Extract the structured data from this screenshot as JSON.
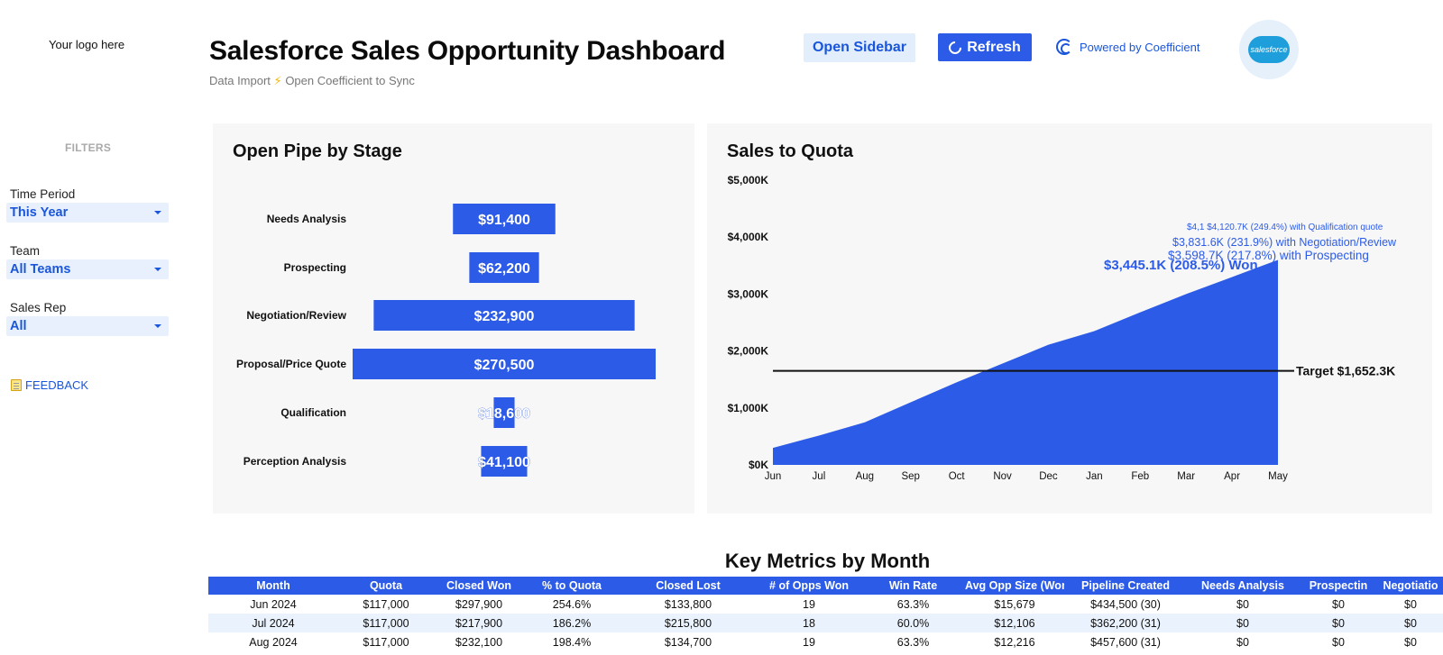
{
  "sidebar": {
    "logo_text": "Your logo here",
    "filters_title": "FILTERS",
    "filters": [
      {
        "label": "Time Period",
        "value": "This Year"
      },
      {
        "label": "Team",
        "value": "All Teams"
      },
      {
        "label": "Sales Rep",
        "value": "All"
      }
    ],
    "feedback_label": "FEEDBACK"
  },
  "header": {
    "title": "Salesforce Sales Opportunity Dashboard",
    "subtitle_pre": "Data Import",
    "subtitle_post": "Open Coefficient to Sync",
    "open_sidebar_label": "Open Sidebar",
    "refresh_label": "Refresh",
    "powered_label": "Powered by Coefficient",
    "salesforce_logo_text": "salesforce"
  },
  "colors": {
    "accent": "#2c5be8",
    "accent_light": "#e3eefc",
    "panel_bg": "#f7f7f7"
  },
  "chart_data": [
    {
      "type": "bar",
      "title": "Open Pipe by Stage",
      "categories": [
        "Needs Analysis",
        "Prospecting",
        "Negotiation/Review",
        "Proposal/Price Quote",
        "Qualification",
        "Perception Analysis"
      ],
      "values": [
        91400,
        62200,
        232900,
        270500,
        18600,
        41100
      ],
      "labels": [
        "$91,400",
        "$62,200",
        "$232,900",
        "$270,500",
        "$18,600",
        "$41,100"
      ]
    },
    {
      "type": "area",
      "title": "Sales to Quota",
      "x": [
        "Jun",
        "Jul",
        "Aug",
        "Sep",
        "Oct",
        "Nov",
        "Dec",
        "Jan",
        "Feb",
        "Mar",
        "Apr",
        "May"
      ],
      "y_ticks": [
        "$0K",
        "$1,000K",
        "$2,000K",
        "$3,000K",
        "$4,000K",
        "$5,000K"
      ],
      "ylim": [
        0,
        5000
      ],
      "series": [
        {
          "values": [
            298,
            515,
            747,
            1100,
            1450,
            1780,
            2110,
            2350,
            2680,
            3000,
            3300,
            3600
          ]
        }
      ],
      "target": {
        "value": 1652.3,
        "label": "Target $1,652.3K"
      },
      "annotations": [
        {
          "text": "$4,1 $4,120.7K (249.4%) with Qualification quote"
        },
        {
          "text": "$3,831.6K (231.9%) with Negotiation/Review"
        },
        {
          "text": "$3,598.7K (217.8%) with Prospecting"
        },
        {
          "text": "$3,445.1K (208.5%) Won"
        }
      ]
    }
  ],
  "table": {
    "title": "Key Metrics by Month",
    "columns": [
      "Month",
      "Quota",
      "Closed Won",
      "% to Quota",
      "Closed Lost",
      "# of Opps Won",
      "Win Rate",
      "Avg Opp Size (Won)",
      "Pipeline Created",
      "Needs Analysis",
      "Prospectin",
      "Negotiatio"
    ],
    "rows": [
      [
        "Jun 2024",
        "$117,000",
        "$297,900",
        "254.6%",
        "$133,800",
        "19",
        "63.3%",
        "$15,679",
        "$434,500 (30)",
        "$0",
        "$0",
        "$0"
      ],
      [
        "Jul 2024",
        "$117,000",
        "$217,900",
        "186.2%",
        "$215,800",
        "18",
        "60.0%",
        "$12,106",
        "$362,200 (31)",
        "$0",
        "$0",
        "$0"
      ],
      [
        "Aug 2024",
        "$117,000",
        "$232,100",
        "198.4%",
        "$134,700",
        "19",
        "63.3%",
        "$12,216",
        "$457,600 (31)",
        "$0",
        "$0",
        "$0"
      ]
    ]
  }
}
